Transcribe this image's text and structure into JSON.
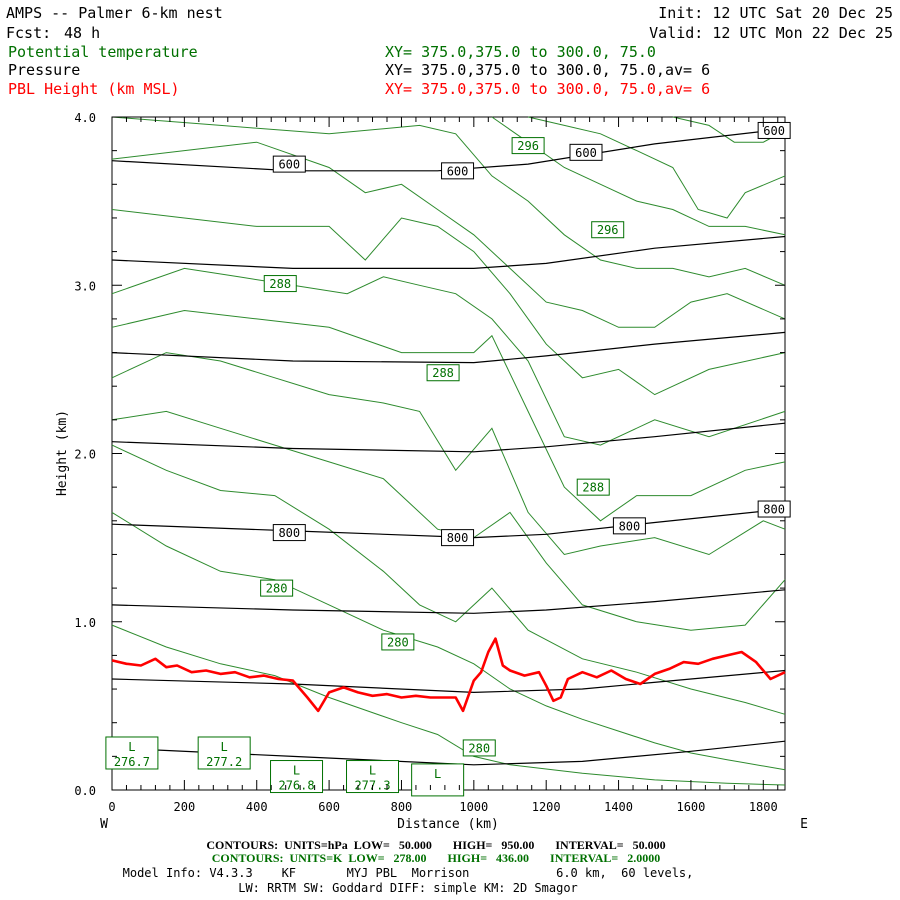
{
  "header": {
    "title": "AMPS -- Palmer 6-km nest",
    "fcst_label": "Fcst:",
    "fcst_value": "48 h",
    "init": "Init: 12 UTC Sat 20 Dec 25",
    "valid": "Valid: 12 UTC Mon 22 Dec 25",
    "fields": [
      {
        "name": "Potential temperature",
        "xy": "XY= 375.0,375.0 to 300.0, 75.0",
        "color": "#007000"
      },
      {
        "name": "Pressure",
        "xy": "XY= 375.0,375.0 to 300.0, 75.0,av=  6",
        "color": "#000000"
      },
      {
        "name": "PBL Height (km MSL)",
        "xy": "XY= 375.0,375.0 to 300.0, 75.0,av=  6",
        "color": "#ff0000"
      }
    ]
  },
  "footer": {
    "line1": "CONTOURS:  UNITS=hPa  LOW=   50.000       HIGH=   950.00       INTERVAL=   50.000",
    "line2": "CONTOURS:  UNITS=K  LOW=   278.00       HIGH=   436.00       INTERVAL=   2.0000",
    "line3": "Model Info: V4.3.3    KF       MYJ PBL  Morrison            6.0 km,  60 levels,",
    "line4": "LW: RRTM SW: Goddard DIFF: simple KM: 2D Smagor"
  },
  "colors": {
    "pressure": "#000000",
    "theta": "#2e8b2e",
    "pbl": "#ff0000",
    "theta_text": "#007000"
  },
  "chart_data": {
    "type": "line",
    "title": "",
    "xlabel": "Distance (km)",
    "ylabel": "Height (km)",
    "xlim": [
      0,
      1860
    ],
    "ylim": [
      0,
      4.0
    ],
    "xticks": [
      0,
      200,
      400,
      600,
      800,
      1000,
      1200,
      1400,
      1600,
      1800
    ],
    "xtick_labels": [
      "0",
      "200",
      "400",
      "600",
      "800",
      "1000",
      "1200",
      "1400",
      "1600",
      "1800"
    ],
    "yticks": [
      0,
      1.0,
      2.0,
      3.0,
      4.0
    ],
    "ytick_labels": [
      "0.0",
      "1.0",
      "2.0",
      "3.0",
      "4.0"
    ],
    "left_end_label": "W",
    "right_end_label": "E",
    "pressure_contours": [
      {
        "x": [
          0,
          500,
          900,
          1150,
          1500,
          1860
        ],
        "y": [
          3.74,
          3.68,
          3.68,
          3.72,
          3.84,
          3.93
        ]
      },
      {
        "x": [
          0,
          500,
          1000,
          1200,
          1500,
          1860
        ],
        "y": [
          3.15,
          3.1,
          3.1,
          3.13,
          3.22,
          3.29
        ]
      },
      {
        "x": [
          0,
          500,
          1000,
          1200,
          1500,
          1860
        ],
        "y": [
          2.6,
          2.55,
          2.54,
          2.58,
          2.65,
          2.72
        ]
      },
      {
        "x": [
          0,
          500,
          1000,
          1200,
          1500,
          1860
        ],
        "y": [
          2.07,
          2.03,
          2.01,
          2.04,
          2.1,
          2.18
        ]
      },
      {
        "x": [
          0,
          500,
          1000,
          1200,
          1500,
          1860
        ],
        "y": [
          1.58,
          1.54,
          1.5,
          1.52,
          1.59,
          1.67
        ]
      },
      {
        "x": [
          0,
          500,
          1000,
          1200,
          1500,
          1860
        ],
        "y": [
          1.1,
          1.07,
          1.05,
          1.07,
          1.12,
          1.19
        ]
      },
      {
        "x": [
          0,
          500,
          1000,
          1300,
          1600,
          1860
        ],
        "y": [
          0.66,
          0.63,
          0.58,
          0.6,
          0.66,
          0.71
        ]
      },
      {
        "x": [
          0,
          500,
          1000,
          1300,
          1600,
          1860
        ],
        "y": [
          0.25,
          0.2,
          0.15,
          0.17,
          0.23,
          0.29
        ]
      }
    ],
    "theta_contours": [
      {
        "x": [
          0,
          150,
          300,
          450,
          600,
          800,
          900,
          1000,
          1100,
          1300,
          1500,
          1700,
          1860
        ],
        "y": [
          0.98,
          0.85,
          0.75,
          0.68,
          0.55,
          0.4,
          0.33,
          0.2,
          0.15,
          0.1,
          0.06,
          0.04,
          0.03
        ]
      },
      {
        "x": [
          0,
          150,
          300,
          450,
          600,
          750,
          900,
          1000,
          1100,
          1200,
          1300,
          1400,
          1500,
          1600,
          1700,
          1860
        ],
        "y": [
          1.65,
          1.45,
          1.3,
          1.25,
          1.1,
          0.95,
          0.85,
          0.75,
          0.6,
          0.5,
          0.42,
          0.35,
          0.28,
          0.22,
          0.18,
          0.12
        ]
      },
      {
        "x": [
          0,
          150,
          300,
          450,
          600,
          750,
          850,
          950,
          1050,
          1150,
          1300,
          1450,
          1600,
          1750,
          1860
        ],
        "y": [
          2.05,
          1.9,
          1.78,
          1.75,
          1.55,
          1.3,
          1.1,
          1.0,
          1.2,
          0.95,
          0.78,
          0.7,
          0.6,
          0.52,
          0.45
        ]
      },
      {
        "x": [
          0,
          150,
          300,
          450,
          600,
          750,
          900,
          1000,
          1100,
          1200,
          1300,
          1450,
          1600,
          1750,
          1860
        ],
        "y": [
          2.2,
          2.25,
          2.15,
          2.05,
          1.95,
          1.85,
          1.55,
          1.5,
          1.65,
          1.35,
          1.1,
          1.0,
          0.95,
          0.98,
          1.25
        ]
      },
      {
        "x": [
          0,
          150,
          300,
          450,
          600,
          750,
          850,
          950,
          1050,
          1150,
          1250,
          1350,
          1500,
          1650,
          1800,
          1860
        ],
        "y": [
          2.45,
          2.6,
          2.55,
          2.45,
          2.35,
          2.3,
          2.25,
          1.9,
          2.15,
          1.65,
          1.4,
          1.45,
          1.5,
          1.4,
          1.6,
          1.55
        ]
      },
      {
        "x": [
          0,
          200,
          400,
          600,
          800,
          900,
          1000,
          1050,
          1150,
          1250,
          1350,
          1450,
          1600,
          1750,
          1860
        ],
        "y": [
          2.75,
          2.85,
          2.8,
          2.75,
          2.6,
          2.6,
          2.6,
          2.7,
          2.25,
          1.8,
          1.6,
          1.75,
          1.75,
          1.9,
          1.95
        ]
      },
      {
        "x": [
          0,
          200,
          350,
          500,
          650,
          750,
          850,
          950,
          1050,
          1150,
          1250,
          1350,
          1500,
          1650,
          1860
        ],
        "y": [
          2.95,
          3.1,
          3.05,
          3.0,
          2.95,
          3.05,
          3.0,
          2.95,
          2.8,
          2.55,
          2.1,
          2.05,
          2.2,
          2.1,
          2.25
        ]
      },
      {
        "x": [
          0,
          200,
          400,
          600,
          700,
          800,
          900,
          1000,
          1100,
          1200,
          1300,
          1400,
          1500,
          1650,
          1860
        ],
        "y": [
          3.45,
          3.4,
          3.35,
          3.35,
          3.15,
          3.4,
          3.35,
          3.2,
          2.95,
          2.65,
          2.45,
          2.5,
          2.35,
          2.5,
          2.6
        ]
      },
      {
        "x": [
          0,
          200,
          400,
          600,
          700,
          800,
          900,
          1000,
          1100,
          1200,
          1300,
          1400,
          1500,
          1600,
          1700,
          1860
        ],
        "y": [
          3.75,
          3.8,
          3.85,
          3.7,
          3.55,
          3.6,
          3.45,
          3.3,
          3.1,
          2.9,
          2.85,
          2.75,
          2.75,
          2.9,
          2.95,
          2.8
        ]
      },
      {
        "x": [
          0,
          300,
          600,
          850,
          950,
          1050,
          1150,
          1250,
          1350,
          1450,
          1550,
          1650,
          1750,
          1860
        ],
        "y": [
          4.0,
          3.95,
          3.9,
          3.95,
          3.9,
          3.65,
          3.5,
          3.3,
          3.15,
          3.1,
          3.1,
          3.05,
          3.1,
          3.0
        ]
      },
      {
        "x": [
          1050,
          1150,
          1250,
          1350,
          1450,
          1550,
          1650,
          1750,
          1860
        ],
        "y": [
          4.0,
          3.85,
          3.7,
          3.6,
          3.5,
          3.45,
          3.35,
          3.35,
          3.3
        ]
      },
      {
        "x": [
          1150,
          1250,
          1350,
          1450,
          1550,
          1620,
          1700,
          1750,
          1860
        ],
        "y": [
          4.0,
          3.95,
          3.9,
          3.8,
          3.7,
          3.45,
          3.4,
          3.55,
          3.65
        ]
      },
      {
        "x": [
          1550,
          1650,
          1720,
          1800,
          1860
        ],
        "y": [
          4.0,
          3.95,
          3.85,
          3.85,
          3.92
        ]
      }
    ],
    "pressure_labels": [
      {
        "text": "600",
        "x": 490,
        "y": 3.72
      },
      {
        "text": "600",
        "x": 955,
        "y": 3.68
      },
      {
        "text": "600",
        "x": 1310,
        "y": 3.79
      },
      {
        "text": "600",
        "x": 1830,
        "y": 3.92
      },
      {
        "text": "800",
        "x": 490,
        "y": 1.53
      },
      {
        "text": "800",
        "x": 955,
        "y": 1.5
      },
      {
        "text": "800",
        "x": 1430,
        "y": 1.57
      },
      {
        "text": "800",
        "x": 1830,
        "y": 1.67
      }
    ],
    "theta_labels": [
      {
        "text": "288",
        "x": 465,
        "y": 3.01
      },
      {
        "text": "296",
        "x": 1150,
        "y": 3.83
      },
      {
        "text": "296",
        "x": 1370,
        "y": 3.33
      },
      {
        "text": "288",
        "x": 915,
        "y": 2.48
      },
      {
        "text": "288",
        "x": 1330,
        "y": 1.8
      },
      {
        "text": "280",
        "x": 455,
        "y": 1.2
      },
      {
        "text": "280",
        "x": 790,
        "y": 0.88
      },
      {
        "text": "280",
        "x": 1015,
        "y": 0.25
      }
    ],
    "low_markers": [
      {
        "letter": "L",
        "value": "276.7",
        "x": 55,
        "y": 0.22
      },
      {
        "letter": "L",
        "value": "277.2",
        "x": 310,
        "y": 0.22
      },
      {
        "letter": "L",
        "value": "276.8",
        "x": 510,
        "y": 0.08
      },
      {
        "letter": "L",
        "value": "277.3",
        "x": 720,
        "y": 0.08
      },
      {
        "letter": "L",
        "value": "",
        "x": 900,
        "y": 0.06
      }
    ],
    "series": [
      {
        "name": "PBL Height (km MSL)",
        "x": [
          0,
          40,
          80,
          120,
          150,
          180,
          220,
          260,
          300,
          340,
          380,
          420,
          460,
          500,
          540,
          570,
          600,
          640,
          680,
          720,
          760,
          800,
          840,
          880,
          920,
          950,
          970,
          1000,
          1020,
          1040,
          1060,
          1080,
          1100,
          1140,
          1180,
          1200,
          1220,
          1240,
          1260,
          1300,
          1340,
          1380,
          1420,
          1460,
          1500,
          1540,
          1580,
          1620,
          1660,
          1700,
          1740,
          1780,
          1820,
          1860
        ],
        "y": [
          0.77,
          0.75,
          0.74,
          0.78,
          0.73,
          0.74,
          0.7,
          0.71,
          0.69,
          0.7,
          0.67,
          0.68,
          0.66,
          0.65,
          0.55,
          0.47,
          0.58,
          0.61,
          0.58,
          0.56,
          0.57,
          0.55,
          0.56,
          0.55,
          0.55,
          0.55,
          0.47,
          0.65,
          0.7,
          0.82,
          0.9,
          0.74,
          0.71,
          0.68,
          0.7,
          0.62,
          0.53,
          0.55,
          0.66,
          0.7,
          0.67,
          0.71,
          0.66,
          0.63,
          0.69,
          0.72,
          0.76,
          0.75,
          0.78,
          0.8,
          0.82,
          0.76,
          0.66,
          0.7
        ]
      }
    ]
  }
}
